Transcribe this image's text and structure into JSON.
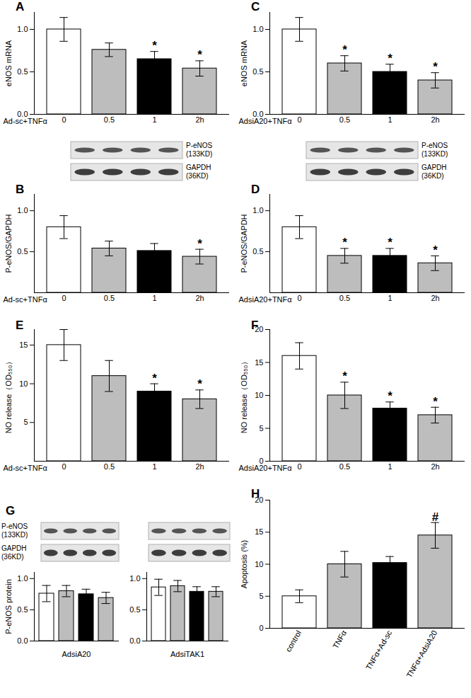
{
  "chart_data": [
    {
      "panel": "A",
      "type": "bar",
      "categories": [
        "0",
        "0.5",
        "1",
        "2h"
      ],
      "values": [
        1.0,
        0.76,
        0.65,
        0.54
      ],
      "errors": [
        0.14,
        0.08,
        0.09,
        0.09
      ],
      "annotations": [
        null,
        null,
        "*",
        "*"
      ],
      "colors": [
        "#ffffff",
        "#bdbdbd",
        "#000000",
        "#bdbdbd"
      ],
      "xlabel": "Ad-sc+TNFα",
      "ylabel": "eNOS mRNA",
      "ylim": [
        0,
        1.2
      ],
      "yticks": [
        {
          "value": 0,
          "label": "0.0"
        },
        {
          "value": 0.5,
          "label": "0.5"
        },
        {
          "value": 1,
          "label": "1.0"
        }
      ]
    },
    {
      "panel": "B",
      "type": "bar",
      "categories": [
        "0",
        "0.5",
        "1",
        "2h"
      ],
      "values": [
        0.8,
        0.54,
        0.51,
        0.44
      ],
      "errors": [
        0.14,
        0.09,
        0.09,
        0.09
      ],
      "annotations": [
        null,
        null,
        null,
        "*"
      ],
      "colors": [
        "#ffffff",
        "#bdbdbd",
        "#000000",
        "#bdbdbd"
      ],
      "xlabel": "Ad-sc+TNFα",
      "ylabel": "P-eNOS/GAPDH",
      "ylim": [
        0,
        1.2
      ],
      "yticks": [
        0.5,
        {
          "value": 1,
          "label": "1.0"
        }
      ],
      "blot_labels": [
        [
          "P-eNOS",
          "(133KD)"
        ],
        [
          "GAPDH",
          "(36KD)"
        ]
      ]
    },
    {
      "panel": "C",
      "type": "bar",
      "categories": [
        "0",
        "0.5",
        "1",
        "2h"
      ],
      "values": [
        1.0,
        0.6,
        0.5,
        0.4
      ],
      "errors": [
        0.14,
        0.09,
        0.09,
        0.09
      ],
      "annotations": [
        null,
        "*",
        "*",
        "*"
      ],
      "colors": [
        "#ffffff",
        "#bdbdbd",
        "#000000",
        "#bdbdbd"
      ],
      "xlabel": "AdsiA20+TNFα",
      "ylabel": "eNOS mRNA",
      "ylim": [
        0,
        1.2
      ],
      "yticks": [
        {
          "value": 0,
          "label": "0.0"
        },
        {
          "value": 0.5,
          "label": "0.5"
        },
        {
          "value": 1,
          "label": "1.0"
        }
      ]
    },
    {
      "panel": "D",
      "type": "bar",
      "categories": [
        "0",
        "0.5",
        "1",
        "2h"
      ],
      "values": [
        0.8,
        0.45,
        0.45,
        0.36
      ],
      "errors": [
        0.14,
        0.09,
        0.09,
        0.09
      ],
      "annotations": [
        null,
        "*",
        "*",
        "*"
      ],
      "colors": [
        "#ffffff",
        "#bdbdbd",
        "#000000",
        "#bdbdbd"
      ],
      "xlabel": "AdsiA20+TNFα",
      "ylabel": "P-eNOS/GAPDH",
      "ylim": [
        0,
        1.2
      ],
      "yticks": [
        0.5,
        {
          "value": 1,
          "label": "1.0"
        }
      ],
      "blot_labels": [
        [
          "P-eNOS",
          "(133KD)"
        ],
        [
          "GAPDH",
          "(36KD)"
        ]
      ]
    },
    {
      "panel": "E",
      "type": "bar",
      "categories": [
        "0",
        "0.5",
        "1",
        "2h"
      ],
      "values": [
        15,
        11,
        9,
        8
      ],
      "errors": [
        2,
        2,
        1,
        1.2
      ],
      "annotations": [
        null,
        null,
        "*",
        "*"
      ],
      "colors": [
        "#ffffff",
        "#bdbdbd",
        "#000000",
        "#bdbdbd"
      ],
      "xlabel": "Ad-sc+TNFα",
      "ylabel": "NO release（OD₅₅₀）",
      "ylim": [
        0,
        17
      ],
      "yticks": [
        5,
        10,
        15
      ]
    },
    {
      "panel": "F",
      "type": "bar",
      "categories": [
        "0",
        "0.5",
        "1",
        "2h"
      ],
      "values": [
        16,
        10,
        8,
        7
      ],
      "errors": [
        2,
        2,
        1,
        1.2
      ],
      "annotations": [
        null,
        "*",
        "*",
        "*"
      ],
      "colors": [
        "#ffffff",
        "#bdbdbd",
        "#000000",
        "#bdbdbd"
      ],
      "xlabel": "AdsiA20+TNFα",
      "ylabel": "NO release（OD₅₅₀）",
      "ylim": [
        0,
        20
      ],
      "yticks": [
        0,
        5,
        10,
        15,
        20
      ]
    },
    {
      "panel": "G",
      "type": "bar",
      "categories": [
        null,
        null,
        null,
        null
      ],
      "values": [
        0.76,
        0.8,
        0.75,
        0.69
      ],
      "errors": [
        0.13,
        0.09,
        0.08,
        0.09
      ],
      "colors": [
        "#ffffff",
        "#bdbdbd",
        "#000000",
        "#bdbdbd"
      ],
      "xlabel": "AdsiA20",
      "ylabel": "P-eNOS protein",
      "ylim": [
        0,
        1.1
      ],
      "yticks": [
        {
          "value": 0,
          "label": "0.0"
        },
        {
          "value": 0.5,
          "label": "0.5"
        },
        {
          "value": 1,
          "label": "1.0"
        }
      ],
      "blot_labels": [
        [
          "P-eNOS",
          "(133KD)"
        ],
        [
          "GAPDH",
          "(36KD)"
        ]
      ]
    },
    {
      "type": "bar",
      "categories": [
        null,
        null,
        null,
        null
      ],
      "values": [
        0.86,
        0.88,
        0.79,
        0.79
      ],
      "errors": [
        0.13,
        0.09,
        0.08,
        0.08
      ],
      "colors": [
        "#ffffff",
        "#bdbdbd",
        "#000000",
        "#bdbdbd"
      ],
      "xlabel": "AdsiTAK1",
      "ylim": [
        0,
        1.1
      ],
      "yticks": [
        {
          "value": 0,
          "label": "0.0"
        },
        {
          "value": 0.5,
          "label": "0.5"
        },
        {
          "value": 1,
          "label": "1.0"
        }
      ]
    },
    {
      "panel": "H",
      "type": "bar",
      "categories": [
        "control",
        "TNFα",
        "TNFα+Ad-sc",
        "TNFα+AdsiA20"
      ],
      "values": [
        5,
        10,
        10.2,
        14.5
      ],
      "errors": [
        1,
        2,
        1,
        2
      ],
      "annotations": [
        null,
        null,
        null,
        "#"
      ],
      "colors": [
        "#ffffff",
        "#bdbdbd",
        "#000000",
        "#bdbdbd"
      ],
      "ylabel": "Apoptosis (%)",
      "ylim": [
        0,
        20
      ],
      "yticks": [
        0,
        5,
        10,
        15,
        20
      ]
    }
  ]
}
